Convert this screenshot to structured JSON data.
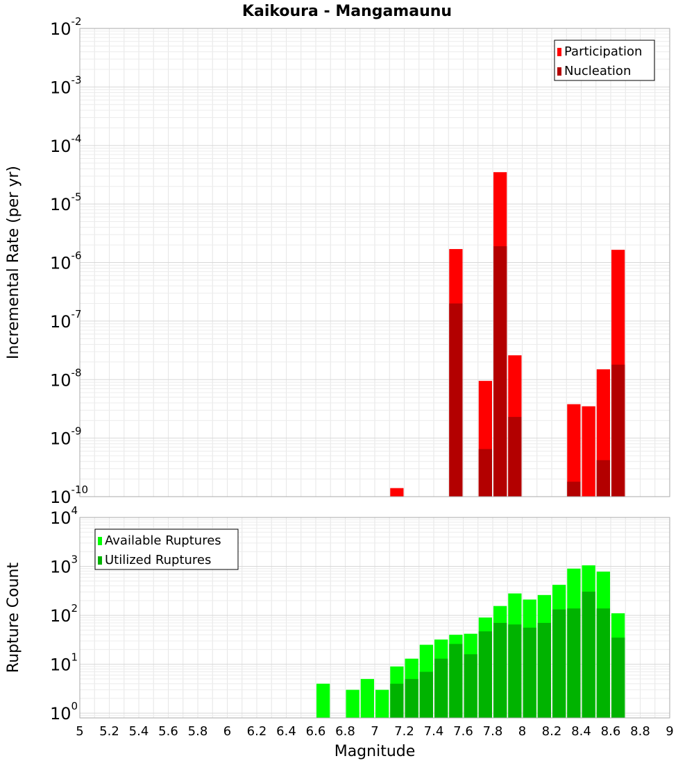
{
  "chart_data": [
    {
      "type": "bar",
      "title": "Kaikoura - Mangamaunu",
      "xlabel": "Magnitude",
      "ylabel": "Incremental Rate (per yr)",
      "xlim": [
        5,
        9
      ],
      "ylim": [
        1e-10,
        0.01
      ],
      "yscale": "log",
      "bin_width": 0.1,
      "grid": true,
      "legend_position": "top-right",
      "x_ticks": [
        "5",
        "5.2",
        "5.4",
        "5.6",
        "5.8",
        "6",
        "6.2",
        "6.4",
        "6.6",
        "6.8",
        "7",
        "7.2",
        "7.4",
        "7.6",
        "7.8",
        "8",
        "8.2",
        "8.4",
        "8.6",
        "8.8",
        "9"
      ],
      "y_ticks": [
        {
          "base": "10",
          "exp": "-10"
        },
        {
          "base": "10",
          "exp": "-9"
        },
        {
          "base": "10",
          "exp": "-8"
        },
        {
          "base": "10",
          "exp": "-7"
        },
        {
          "base": "10",
          "exp": "-6"
        },
        {
          "base": "10",
          "exp": "-5"
        },
        {
          "base": "10",
          "exp": "-4"
        },
        {
          "base": "10",
          "exp": "-3"
        },
        {
          "base": "10",
          "exp": "-2"
        }
      ],
      "series": [
        {
          "name": "Participation",
          "color": "#ff0000",
          "x": [
            7.15,
            7.55,
            7.75,
            7.85,
            7.95,
            8.35,
            8.45,
            8.55,
            8.65
          ],
          "values": [
            1.4e-10,
            1.7e-06,
            9.5e-09,
            3.5e-05,
            2.6e-08,
            3.8e-09,
            3.5e-09,
            1.5e-08,
            1.65e-06
          ]
        },
        {
          "name": "Nucleation",
          "color": "#b30000",
          "x": [
            7.55,
            7.75,
            7.85,
            7.95,
            8.35,
            8.55,
            8.65
          ],
          "values": [
            2e-07,
            6.5e-10,
            1.9e-06,
            2.3e-09,
            1.8e-10,
            4.2e-10,
            1.8e-08
          ]
        }
      ]
    },
    {
      "type": "bar",
      "xlabel": "Magnitude",
      "ylabel": "Rupture Count",
      "xlim": [
        5,
        9
      ],
      "ylim": [
        0.8,
        10000
      ],
      "yscale": "log",
      "bin_width": 0.1,
      "grid": true,
      "legend_position": "top-left",
      "x_ticks": [
        "5",
        "5.2",
        "5.4",
        "5.6",
        "5.8",
        "6",
        "6.2",
        "6.4",
        "6.6",
        "6.8",
        "7",
        "7.2",
        "7.4",
        "7.6",
        "7.8",
        "8",
        "8.2",
        "8.4",
        "8.6",
        "8.8",
        "9"
      ],
      "y_ticks": [
        {
          "base": "10",
          "exp": "0"
        },
        {
          "base": "10",
          "exp": "1"
        },
        {
          "base": "10",
          "exp": "2"
        },
        {
          "base": "10",
          "exp": "3"
        },
        {
          "base": "10",
          "exp": "4"
        }
      ],
      "series": [
        {
          "name": "Available Ruptures",
          "color": "#00ff00",
          "x": [
            6.65,
            6.85,
            6.95,
            7.05,
            7.15,
            7.25,
            7.35,
            7.45,
            7.55,
            7.65,
            7.75,
            7.85,
            7.95,
            8.05,
            8.15,
            8.25,
            8.35,
            8.45,
            8.55,
            8.65
          ],
          "values": [
            4,
            3,
            5,
            3,
            9,
            13,
            25,
            32,
            40,
            42,
            90,
            155,
            280,
            210,
            260,
            420,
            900,
            1050,
            780,
            110
          ]
        },
        {
          "name": "Utilized Ruptures",
          "color": "#00b300",
          "x": [
            7.15,
            7.25,
            7.35,
            7.45,
            7.55,
            7.65,
            7.75,
            7.85,
            7.95,
            8.05,
            8.15,
            8.25,
            8.35,
            8.45,
            8.55,
            8.65
          ],
          "values": [
            4,
            5,
            7,
            13,
            26,
            16,
            47,
            70,
            65,
            56,
            70,
            132,
            138,
            305,
            138,
            35
          ]
        }
      ]
    }
  ]
}
